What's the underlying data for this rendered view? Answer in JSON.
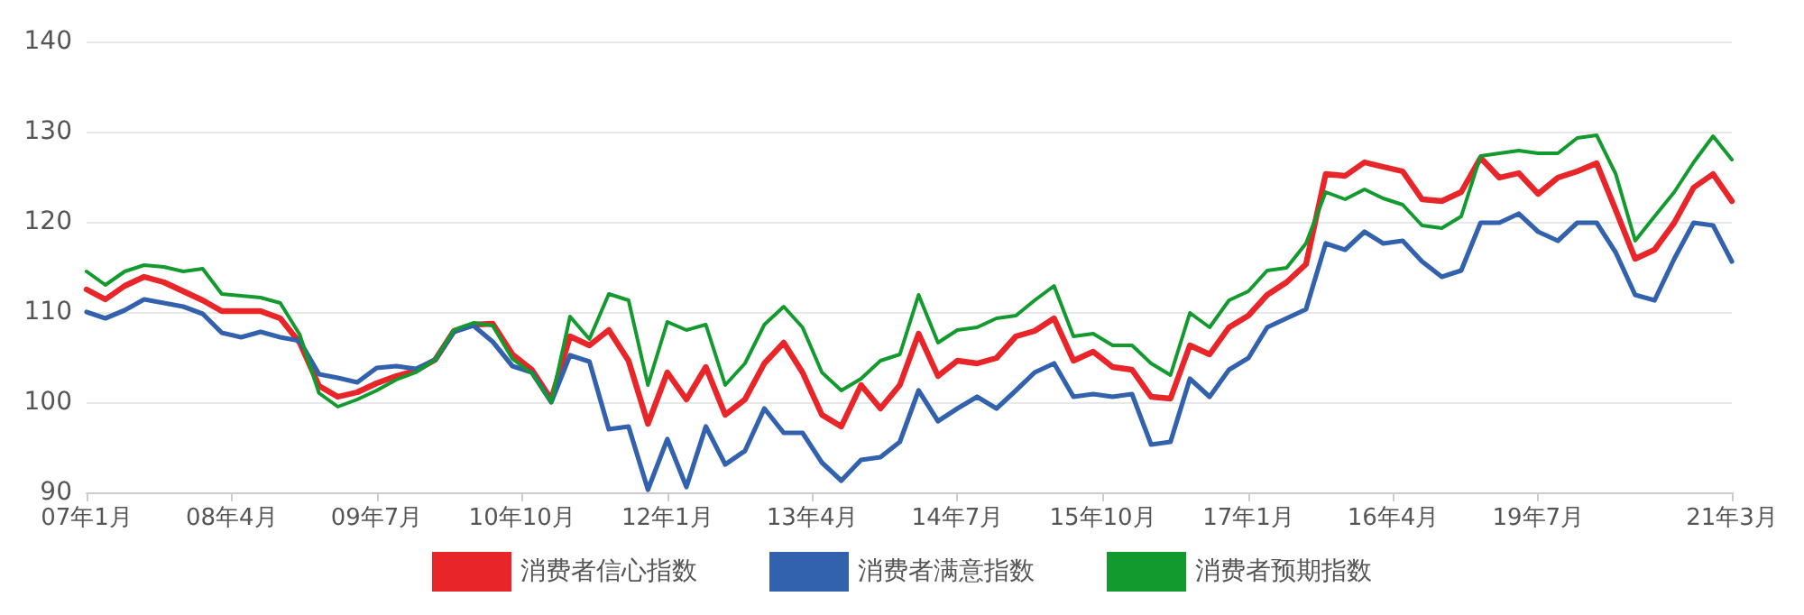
{
  "chart_data": {
    "type": "line",
    "legend": "bottom",
    "grid": "y",
    "marker": "none",
    "line_style": "solid",
    "x": [
      "2007-01",
      "2007-03",
      "2007-05",
      "2007-07",
      "2007-09",
      "2007-11",
      "2008-01",
      "2008-03",
      "2008-05",
      "2008-07",
      "2008-09",
      "2008-11",
      "2009-01",
      "2009-03",
      "2009-05",
      "2009-07",
      "2009-09",
      "2009-11",
      "2010-01",
      "2010-03",
      "2010-05",
      "2010-07",
      "2010-09",
      "2010-11",
      "2011-01",
      "2011-03",
      "2011-05",
      "2011-07",
      "2011-09",
      "2011-11",
      "2012-01",
      "2012-03",
      "2012-05",
      "2012-07",
      "2012-09",
      "2012-11",
      "2013-01",
      "2013-03",
      "2013-05",
      "2013-07",
      "2013-09",
      "2013-11",
      "2014-01",
      "2014-03",
      "2014-05",
      "2014-07",
      "2014-09",
      "2014-11",
      "2015-01",
      "2015-03",
      "2015-05",
      "2015-07",
      "2015-09",
      "2015-11",
      "2016-01",
      "2016-03",
      "2016-05",
      "2016-07",
      "2016-09",
      "2016-11",
      "2017-01",
      "2017-03",
      "2017-05",
      "2017-07",
      "2017-09",
      "2017-11",
      "2018-01",
      "2018-03",
      "2018-05",
      "2018-07",
      "2018-09",
      "2018-11",
      "2019-01",
      "2019-03",
      "2019-05",
      "2019-07",
      "2019-09",
      "2019-11",
      "2020-01",
      "2020-03",
      "2020-05",
      "2020-07",
      "2020-09",
      "2020-11",
      "2021-01",
      "2021-03"
    ],
    "xlim": [
      "2007-01",
      "2021-03"
    ],
    "xticks": [
      {
        "value": "2007-01",
        "label": "07年1月"
      },
      {
        "value": "2008-04",
        "label": "08年4月"
      },
      {
        "value": "2009-07",
        "label": "09年7月"
      },
      {
        "value": "2010-10",
        "label": "10年10月"
      },
      {
        "value": "2012-01",
        "label": "12年1月"
      },
      {
        "value": "2013-04",
        "label": "13年4月"
      },
      {
        "value": "2014-07",
        "label": "14年7月"
      },
      {
        "value": "2015-10",
        "label": "15年10月"
      },
      {
        "value": "2017-01",
        "label": "17年1月"
      },
      {
        "value": "2018-04",
        "label": "16年4月"
      },
      {
        "value": "2019-07",
        "label": "19年7月"
      },
      {
        "value": "2021-03",
        "label": "21年3月"
      }
    ],
    "ylim": [
      90,
      140
    ],
    "yticks": [
      90,
      100,
      110,
      120,
      130,
      140
    ],
    "series": [
      {
        "name": "消费者信心指数",
        "color": "#e8262a",
        "values": [
          112.5,
          111.4,
          112.9,
          113.9,
          113.3,
          112.3,
          111.3,
          110.1,
          110.1,
          110.1,
          109.3,
          106.6,
          101.8,
          100.6,
          101.1,
          102.1,
          102.9,
          103.5,
          104.7,
          107.9,
          108.6,
          108.7,
          105.3,
          103.6,
          100.3,
          107.3,
          106.3,
          108,
          104.6,
          97.6,
          103.3,
          100.3,
          103.9,
          98.6,
          100.3,
          104.3,
          106.6,
          103.3,
          98.6,
          97.3,
          101.9,
          99.3,
          101.9,
          107.6,
          102.9,
          104.6,
          104.3,
          104.9,
          107.3,
          107.9,
          109.3,
          104.6,
          105.6,
          103.9,
          103.6,
          100.6,
          100.4,
          106.3,
          105.3,
          108.3,
          109.6,
          111.9,
          113.3,
          115.3,
          125.3,
          125.1,
          126.6,
          126.1,
          125.6,
          122.5,
          122.3,
          123.3,
          127.1,
          124.9,
          125.4,
          123.1,
          124.9,
          125.6,
          126.5,
          121.3,
          115.9,
          116.9,
          119.9,
          123.8,
          125.3,
          122.3
        ]
      },
      {
        "name": "消费者满意指数",
        "color": "#3261ad",
        "values": [
          110,
          109.3,
          110.2,
          111.4,
          111,
          110.6,
          109.8,
          107.7,
          107.2,
          107.8,
          107.2,
          106.8,
          103.1,
          102.7,
          102.2,
          103.8,
          104,
          103.7,
          104.7,
          107.8,
          108.5,
          106.7,
          104,
          103.3,
          100,
          105.2,
          104.5,
          97,
          97.3,
          90.3,
          95.9,
          90.6,
          97.3,
          93.1,
          94.6,
          99.3,
          96.6,
          96.6,
          93.3,
          91.3,
          93.6,
          93.9,
          95.6,
          101.3,
          97.9,
          99.3,
          100.6,
          99.3,
          101.3,
          103.3,
          104.3,
          100.6,
          100.9,
          100.6,
          100.9,
          95.3,
          95.6,
          102.6,
          100.6,
          103.6,
          104.9,
          108.3,
          109.3,
          110.3,
          117.6,
          116.9,
          118.9,
          117.6,
          117.9,
          115.6,
          113.9,
          114.6,
          119.9,
          119.9,
          120.9,
          118.9,
          117.9,
          119.9,
          119.9,
          116.6,
          111.9,
          111.3,
          115.9,
          119.9,
          119.6,
          115.6
        ]
      },
      {
        "name": "消费者预期指数",
        "color": "#139a2e",
        "values": [
          114.5,
          113,
          114.5,
          115.2,
          115,
          114.5,
          114.8,
          112,
          111.8,
          111.6,
          111,
          107.5,
          101,
          99.5,
          100.3,
          101.3,
          102.5,
          103.3,
          104.7,
          108,
          108.8,
          108.5,
          104.8,
          103.2,
          100,
          109.5,
          107,
          112,
          111.3,
          101.9,
          108.9,
          108,
          108.6,
          101.9,
          104.3,
          108.6,
          110.6,
          108.3,
          103.3,
          101.3,
          102.6,
          104.6,
          105.3,
          111.9,
          106.6,
          108,
          108.3,
          109.3,
          109.6,
          111.3,
          112.9,
          107.3,
          107.6,
          106.3,
          106.3,
          104.3,
          103,
          109.9,
          108.3,
          111.3,
          112.3,
          114.6,
          114.9,
          117.6,
          123.3,
          122.5,
          123.6,
          122.6,
          121.9,
          119.6,
          119.3,
          120.6,
          127.3,
          127.6,
          127.9,
          127.6,
          127.6,
          129.3,
          129.6,
          125.3,
          117.9,
          120.6,
          123.3,
          126.6,
          129.5,
          126.9
        ]
      }
    ]
  }
}
